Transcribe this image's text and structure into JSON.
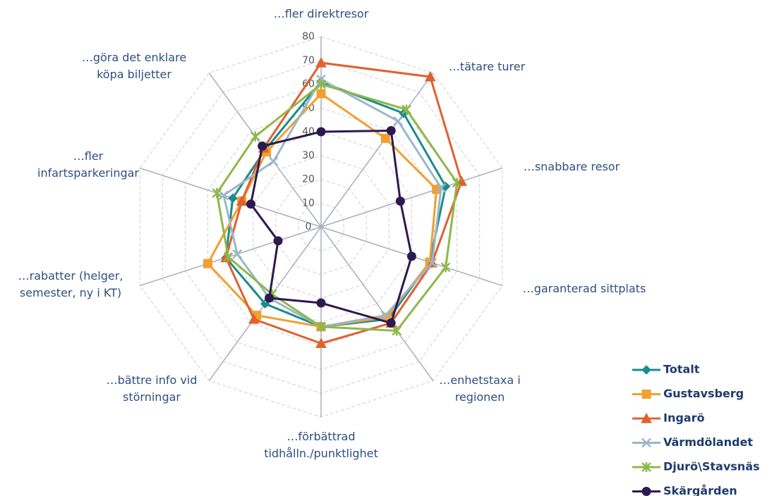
{
  "chart_data": {
    "type": "radar",
    "categories": [
      "…fler direktresor",
      "…tätare turer",
      "…snabbare resor",
      "…garanterad sittplats",
      "…enhetstaxa i\nregionen",
      "…förbättrad\ntidhålln./punktlighet",
      "…bättre info vid\nstörningar",
      "…rabatter (helger,\nsemester, ny i KT)",
      "…fler\ninfartsparkeringar",
      "…göra det enklare\nköpa biljetter"
    ],
    "rlim": [
      0,
      80
    ],
    "rticks": [
      0,
      10,
      20,
      30,
      40,
      50,
      60,
      70,
      80
    ],
    "grid": true,
    "legend": "lower right",
    "series": [
      {
        "name": "Totalt",
        "color": "#1a8c8c",
        "marker": "diamond",
        "values": [
          61,
          59,
          55,
          48,
          48,
          42,
          40,
          42,
          39,
          40
        ]
      },
      {
        "name": "Gustavsberg",
        "color": "#f0a030",
        "marker": "square",
        "values": [
          56,
          46,
          51,
          48,
          47,
          42,
          46,
          50,
          35,
          39
        ]
      },
      {
        "name": "Ingarö",
        "color": "#e06030",
        "marker": "triangle",
        "values": [
          69,
          78,
          62,
          49,
          50,
          49,
          48,
          42,
          35,
          41
        ]
      },
      {
        "name": "Värmdölandet",
        "color": "#9bb7c8",
        "marker": "x",
        "values": [
          62,
          55,
          53,
          49,
          46,
          42,
          37,
          37,
          43,
          34
        ]
      },
      {
        "name": "Djurö\\Stavsnäs",
        "color": "#8db84a",
        "marker": "star",
        "values": [
          60,
          61,
          60,
          55,
          54,
          42,
          35,
          41,
          46,
          47
        ]
      },
      {
        "name": "Skärgården",
        "color": "#2d1a4f",
        "marker": "circle",
        "values": [
          40,
          50,
          35,
          40,
          50,
          32,
          37,
          19,
          31,
          42
        ]
      }
    ]
  }
}
